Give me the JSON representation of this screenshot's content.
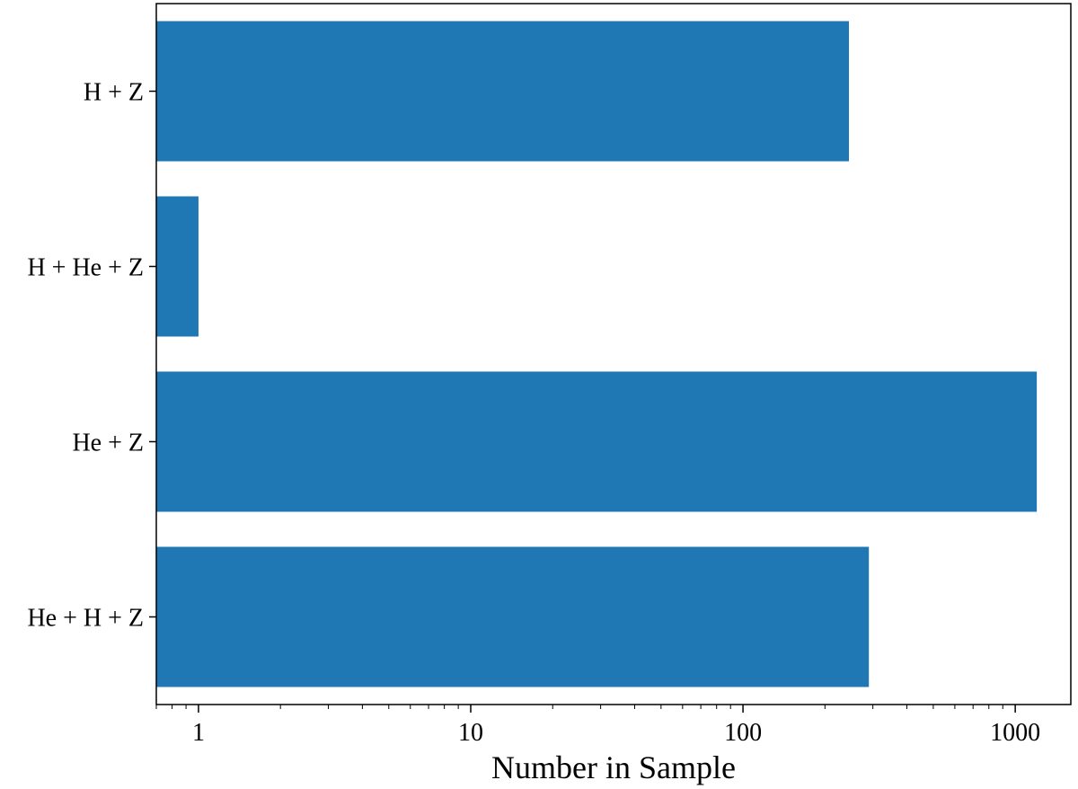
{
  "chart_data": {
    "type": "bar",
    "orientation": "horizontal",
    "categories": [
      "H + Z",
      "H + He + Z",
      "He + Z",
      "He + H + Z"
    ],
    "values": [
      245,
      1,
      1200,
      290
    ],
    "xlabel": "Number in Sample",
    "ylabel": "",
    "xscale": "log",
    "xlim": [
      0.7,
      1600
    ],
    "xticks": [
      1,
      10,
      100,
      1000
    ],
    "xtick_labels": [
      "1",
      "10",
      "100",
      "1000"
    ],
    "grid": false,
    "bar_color": "#1f77b4"
  }
}
